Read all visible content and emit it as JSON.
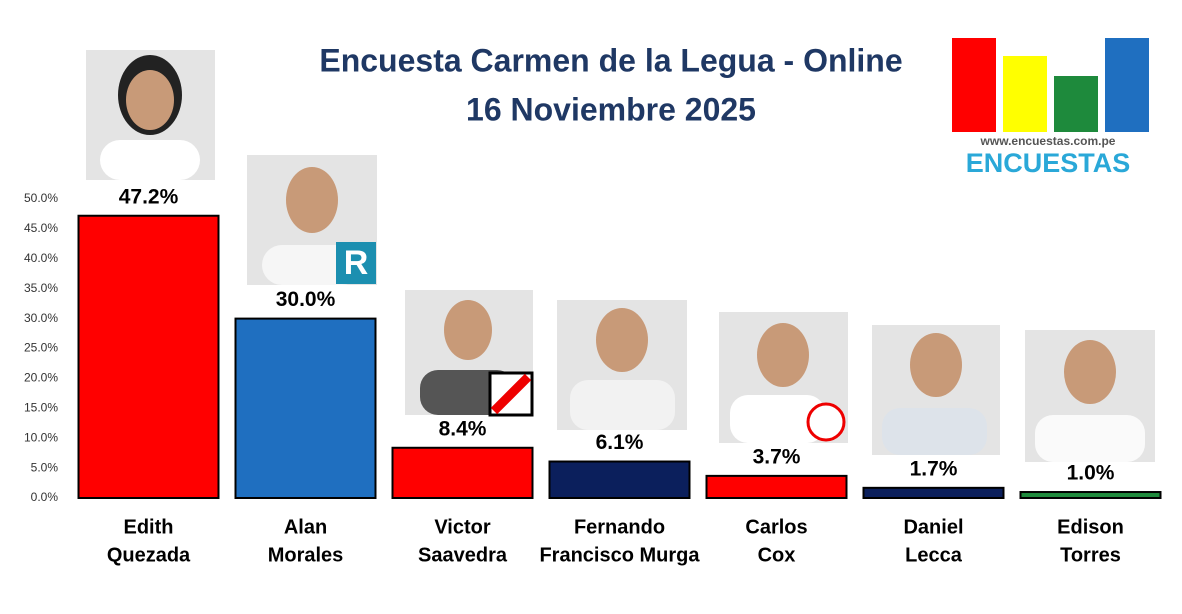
{
  "chart_data": {
    "type": "bar",
    "title": "Encuesta Carmen de la Legua - Online",
    "subtitle": "16 Noviembre 2025",
    "categories": [
      [
        "Edith",
        "Quezada"
      ],
      [
        "Alan",
        "Morales"
      ],
      [
        "Victor",
        "Saavedra"
      ],
      [
        "Fernando",
        "Francisco Murga"
      ],
      [
        "Carlos",
        "Cox"
      ],
      [
        "Daniel",
        "Lecca"
      ],
      [
        "Edison",
        "Torres"
      ]
    ],
    "values": [
      47.2,
      30.0,
      8.4,
      6.1,
      3.7,
      1.7,
      1.0
    ],
    "value_labels": [
      "47.2%",
      "30.0%",
      "8.4%",
      "6.1%",
      "3.7%",
      "1.7%",
      "1.0%"
    ],
    "colors": [
      "#ff0000",
      "#1f6fc0",
      "#ff0000",
      "#0b1f5c",
      "#ff0000",
      "#0b1f5c",
      "#1e8a3c"
    ],
    "ylim": [
      0,
      50
    ],
    "yticks": [
      {
        "value": 0,
        "label": "0.0%"
      },
      {
        "value": 5,
        "label": "5.0%"
      },
      {
        "value": 10,
        "label": "10.0%"
      },
      {
        "value": 15,
        "label": "15.0%"
      },
      {
        "value": 20,
        "label": "20.0%"
      },
      {
        "value": 25,
        "label": "25.0%"
      },
      {
        "value": 30,
        "label": "30.0%"
      },
      {
        "value": 35,
        "label": "35.0%"
      },
      {
        "value": 40,
        "label": "40.0%"
      },
      {
        "value": 45,
        "label": "45.0%"
      },
      {
        "value": 50,
        "label": "50.0%"
      }
    ],
    "grid": false
  },
  "logo": {
    "url": "www.encuestas.com.pe",
    "name": "ENCUESTAS"
  }
}
